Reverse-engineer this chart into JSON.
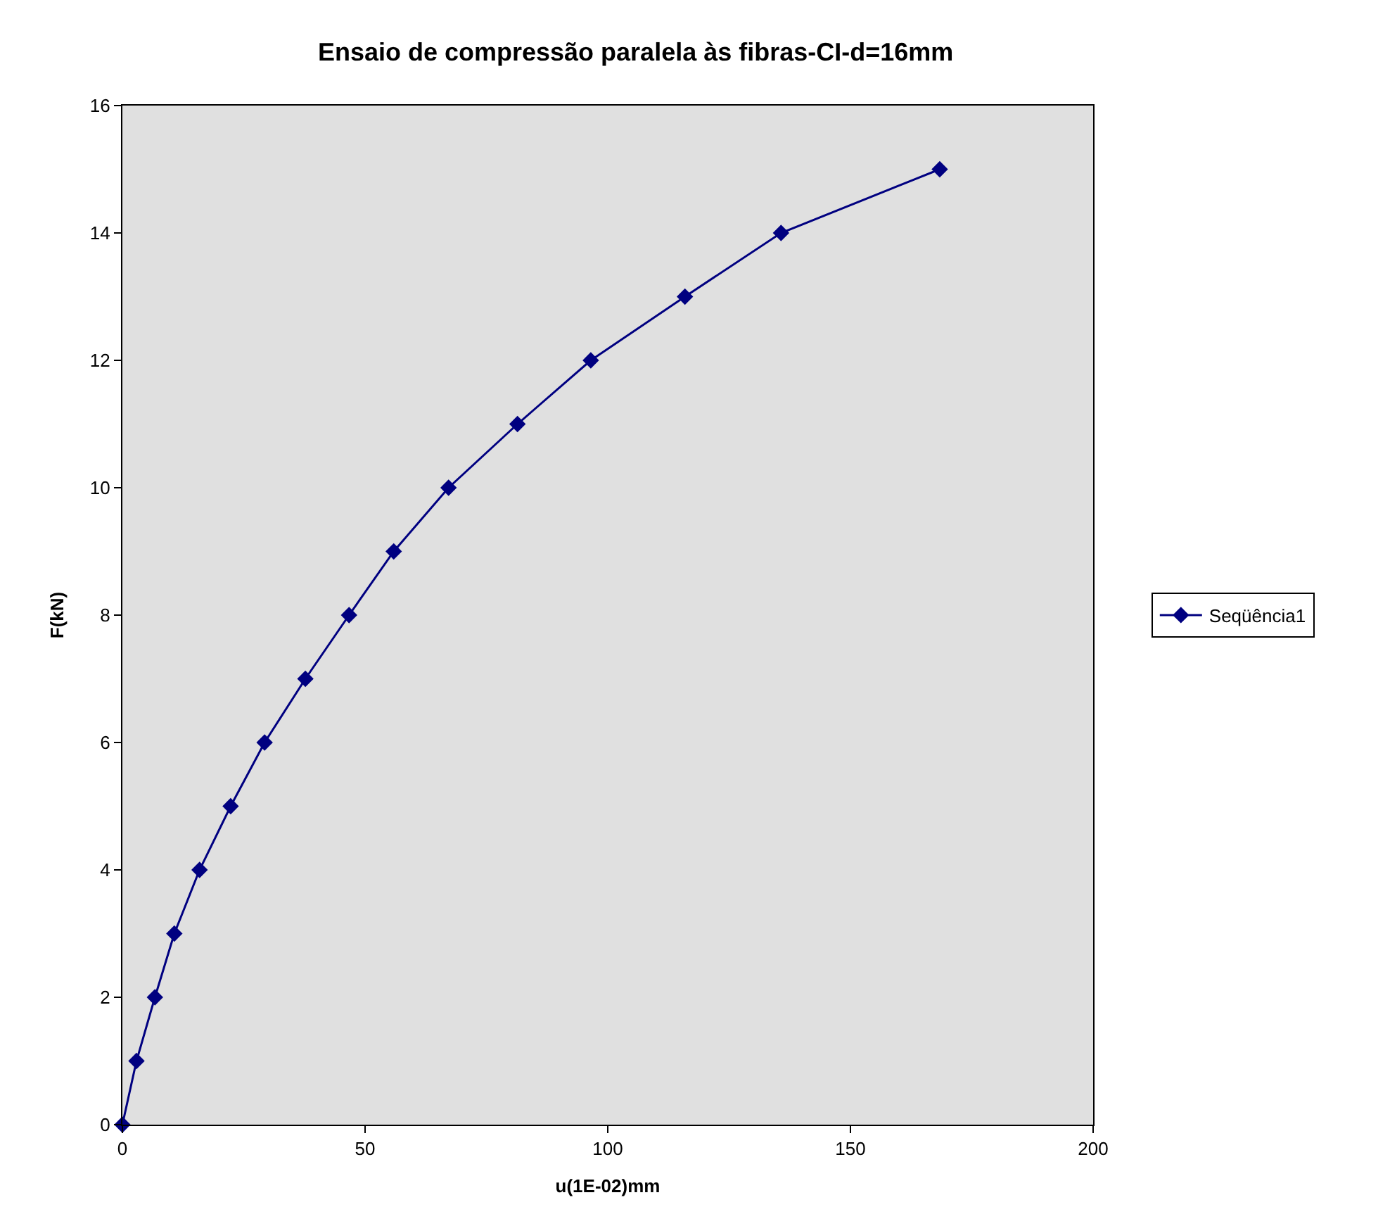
{
  "chart_data": {
    "type": "line",
    "title": "Ensaio de compressão paralela às fibras-CI-d=16mm",
    "xlabel": "u(1E-02)mm",
    "ylabel": "F(kN)",
    "x": [
      0,
      2.9,
      6.7,
      10.7,
      15.9,
      22.3,
      29.3,
      37.7,
      46.7,
      55.9,
      67.2,
      81.4,
      96.5,
      115.9,
      135.7,
      168.4
    ],
    "series": [
      {
        "name": "Seqüência1",
        "color": "#000080",
        "values": [
          0,
          1,
          2,
          3,
          4,
          5,
          6,
          7,
          8,
          9,
          10,
          11,
          12,
          13,
          14,
          15
        ]
      }
    ],
    "xlim": [
      0,
      200
    ],
    "xticks": [
      0,
      50,
      100,
      150,
      200
    ],
    "ylim": [
      0,
      16
    ],
    "yticks": [
      0,
      2,
      4,
      6,
      8,
      10,
      12,
      14,
      16
    ],
    "grid": false,
    "legend": "right",
    "marker": "diamond",
    "line_style": "solid"
  }
}
